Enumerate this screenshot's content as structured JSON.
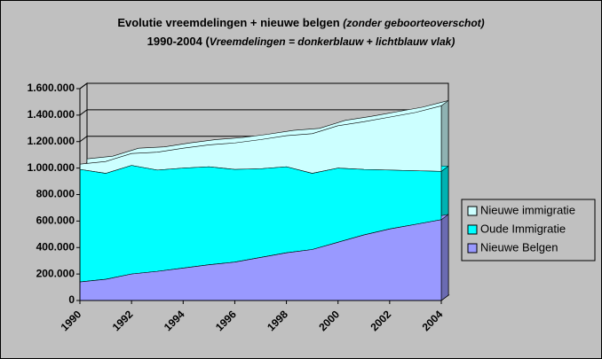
{
  "chart_data": {
    "type": "area3d",
    "title": "Evolutie vreemdelingen + nieuwe belgen",
    "title_note": "(zonder geboorteoverschot)",
    "subtitle": "1990-2004 (",
    "subtitle_note": "Vreemdelingen = donkerblauw + lichtblauw vlak)",
    "x": [
      1990,
      1991,
      1992,
      1993,
      1994,
      1995,
      1996,
      1997,
      1998,
      1999,
      2000,
      2001,
      2002,
      2003,
      2004
    ],
    "xlim": [
      1990,
      2004
    ],
    "xticks": [
      1990,
      1992,
      1994,
      1996,
      1998,
      2000,
      2002,
      2004
    ],
    "ylim": [
      0,
      1600000
    ],
    "yticks": [
      0,
      {
        "value": 200000,
        "label": "200.000"
      },
      {
        "value": 400000,
        "label": "400.000"
      },
      {
        "value": 600000,
        "label": "600.000"
      },
      {
        "value": 800000,
        "label": "800.000"
      },
      {
        "value": 1000000,
        "label": "1.000.000"
      },
      {
        "value": 1200000,
        "label": "1.200.000"
      },
      {
        "value": 1400000,
        "label": "1.400.000"
      },
      {
        "value": 1600000,
        "label": "1.600.000"
      }
    ],
    "grid": true,
    "stacked": true,
    "legend": "right",
    "series": [
      {
        "name": "Nieuwe Belgen",
        "color": "#9999ff",
        "values": [
          140000,
          160000,
          200000,
          220000,
          245000,
          270000,
          290000,
          325000,
          360000,
          385000,
          440000,
          495000,
          540000,
          575000,
          610000
        ]
      },
      {
        "name": "Oude Immigratie",
        "color": "#00ffff",
        "values": [
          850000,
          800000,
          820000,
          765000,
          755000,
          740000,
          700000,
          670000,
          650000,
          575000,
          560000,
          495000,
          445000,
          405000,
          365000
        ]
      },
      {
        "name": "Nieuwe immigratie",
        "color": "#ccffff",
        "values": [
          40000,
          90000,
          90000,
          135000,
          150000,
          165000,
          200000,
          220000,
          235000,
          300000,
          320000,
          360000,
          400000,
          440000,
          495000
        ]
      }
    ]
  }
}
